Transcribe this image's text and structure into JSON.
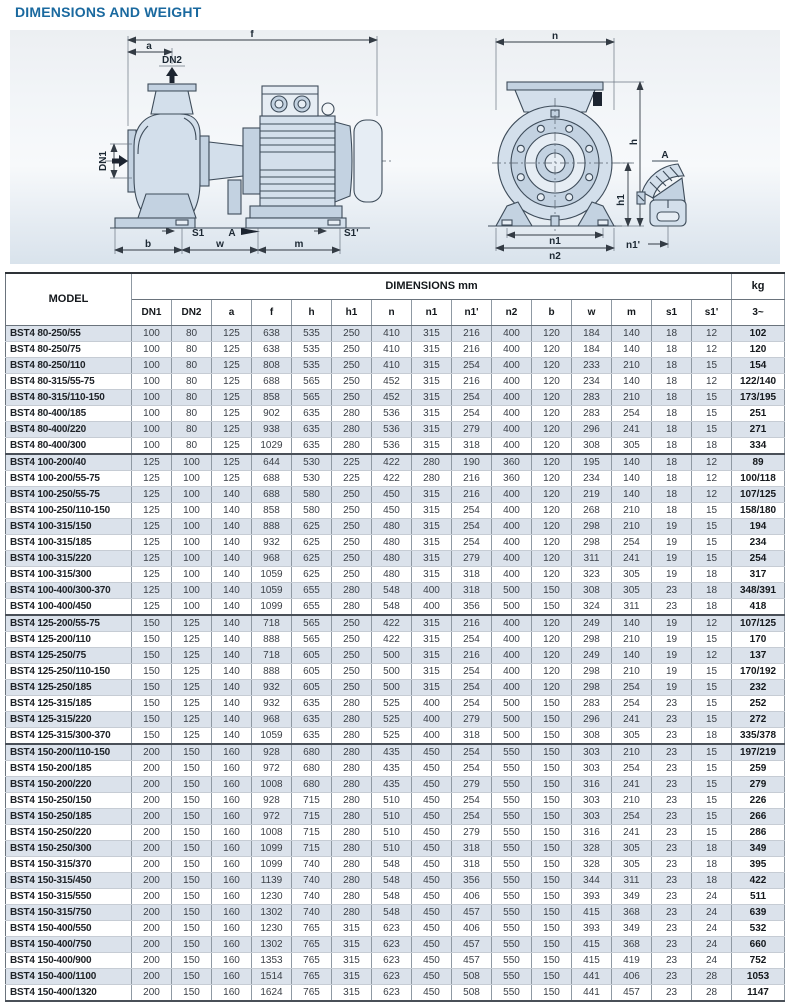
{
  "page": {
    "title": "DIMENSIONS AND WEIGHT"
  },
  "colors": {
    "title_blue": "#1a699f",
    "row_shade": "#dbe2eb",
    "drawing_line": "#3e4c5a",
    "drawing_fill": "#d3dfeb"
  },
  "drawing": {
    "labels": {
      "f": "f",
      "a": "a",
      "dn2": "DN2",
      "dn1": "DN1",
      "s1": "S1",
      "s1_prime": "S1'",
      "detail_a": "A",
      "b": "b",
      "w": "w",
      "m": "m",
      "n": "n",
      "h": "h",
      "h1": "h1",
      "n1": "n1",
      "n2": "n2",
      "n1_prime": "n1'"
    }
  },
  "table": {
    "header": {
      "model": "MODEL",
      "dimensions": "DIMENSIONS mm",
      "kg": "kg",
      "kg_sub": "3~",
      "columns": [
        "DN1",
        "DN2",
        "a",
        "f",
        "h",
        "h1",
        "n",
        "n1",
        "n1'",
        "n2",
        "b",
        "w",
        "m",
        "s1",
        "s1'"
      ]
    },
    "group_separators_after_row": [
      8,
      18,
      26
    ],
    "rows": [
      {
        "model": "BST4 80-250/55",
        "dims": [
          100,
          80,
          125,
          638,
          535,
          250,
          410,
          315,
          216,
          400,
          120,
          184,
          140,
          18,
          12
        ],
        "kg": "102"
      },
      {
        "model": "BST4 80-250/75",
        "dims": [
          100,
          80,
          125,
          638,
          535,
          250,
          410,
          315,
          216,
          400,
          120,
          184,
          140,
          18,
          12
        ],
        "kg": "120"
      },
      {
        "model": "BST4 80-250/110",
        "dims": [
          100,
          80,
          125,
          808,
          535,
          250,
          410,
          315,
          254,
          400,
          120,
          233,
          210,
          18,
          15
        ],
        "kg": "154"
      },
      {
        "model": "BST4 80-315/55-75",
        "dims": [
          100,
          80,
          125,
          688,
          565,
          250,
          452,
          315,
          216,
          400,
          120,
          234,
          140,
          18,
          12
        ],
        "kg": "122/140"
      },
      {
        "model": "BST4 80-315/110-150",
        "dims": [
          100,
          80,
          125,
          858,
          565,
          250,
          452,
          315,
          254,
          400,
          120,
          283,
          210,
          18,
          15
        ],
        "kg": "173/195"
      },
      {
        "model": "BST4 80-400/185",
        "dims": [
          100,
          80,
          125,
          902,
          635,
          280,
          536,
          315,
          254,
          400,
          120,
          283,
          254,
          18,
          15
        ],
        "kg": "251"
      },
      {
        "model": "BST4 80-400/220",
        "dims": [
          100,
          80,
          125,
          938,
          635,
          280,
          536,
          315,
          279,
          400,
          120,
          296,
          241,
          18,
          15
        ],
        "kg": "271"
      },
      {
        "model": "BST4 80-400/300",
        "dims": [
          100,
          80,
          125,
          1029,
          635,
          280,
          536,
          315,
          318,
          400,
          120,
          308,
          305,
          18,
          18
        ],
        "kg": "334"
      },
      {
        "model": "BST4 100-200/40",
        "dims": [
          125,
          100,
          125,
          644,
          530,
          225,
          422,
          280,
          190,
          360,
          120,
          195,
          140,
          18,
          12
        ],
        "kg": "89"
      },
      {
        "model": "BST4 100-200/55-75",
        "dims": [
          125,
          100,
          125,
          688,
          530,
          225,
          422,
          280,
          216,
          360,
          120,
          234,
          140,
          18,
          12
        ],
        "kg": "100/118"
      },
      {
        "model": "BST4 100-250/55-75",
        "dims": [
          125,
          100,
          140,
          688,
          580,
          250,
          450,
          315,
          216,
          400,
          120,
          219,
          140,
          18,
          12
        ],
        "kg": "107/125"
      },
      {
        "model": "BST4 100-250/110-150",
        "dims": [
          125,
          100,
          140,
          858,
          580,
          250,
          450,
          315,
          254,
          400,
          120,
          268,
          210,
          18,
          15
        ],
        "kg": "158/180"
      },
      {
        "model": "BST4 100-315/150",
        "dims": [
          125,
          100,
          140,
          888,
          625,
          250,
          480,
          315,
          254,
          400,
          120,
          298,
          210,
          19,
          15
        ],
        "kg": "194"
      },
      {
        "model": "BST4 100-315/185",
        "dims": [
          125,
          100,
          140,
          932,
          625,
          250,
          480,
          315,
          254,
          400,
          120,
          298,
          254,
          19,
          15
        ],
        "kg": "234"
      },
      {
        "model": "BST4 100-315/220",
        "dims": [
          125,
          100,
          140,
          968,
          625,
          250,
          480,
          315,
          279,
          400,
          120,
          311,
          241,
          19,
          15
        ],
        "kg": "254"
      },
      {
        "model": "BST4 100-315/300",
        "dims": [
          125,
          100,
          140,
          1059,
          625,
          250,
          480,
          315,
          318,
          400,
          120,
          323,
          305,
          19,
          18
        ],
        "kg": "317"
      },
      {
        "model": "BST4 100-400/300-370",
        "dims": [
          125,
          100,
          140,
          1059,
          655,
          280,
          548,
          400,
          318,
          500,
          150,
          308,
          305,
          23,
          18
        ],
        "kg": "348/391"
      },
      {
        "model": "BST4 100-400/450",
        "dims": [
          125,
          100,
          140,
          1099,
          655,
          280,
          548,
          400,
          356,
          500,
          150,
          324,
          311,
          23,
          18
        ],
        "kg": "418"
      },
      {
        "model": "BST4 125-200/55-75",
        "dims": [
          150,
          125,
          140,
          718,
          565,
          250,
          422,
          315,
          216,
          400,
          120,
          249,
          140,
          19,
          12
        ],
        "kg": "107/125"
      },
      {
        "model": "BST4 125-200/110",
        "dims": [
          150,
          125,
          140,
          888,
          565,
          250,
          422,
          315,
          254,
          400,
          120,
          298,
          210,
          19,
          15
        ],
        "kg": "170"
      },
      {
        "model": "BST4 125-250/75",
        "dims": [
          150,
          125,
          140,
          718,
          605,
          250,
          500,
          315,
          216,
          400,
          120,
          249,
          140,
          19,
          12
        ],
        "kg": "137"
      },
      {
        "model": "BST4 125-250/110-150",
        "dims": [
          150,
          125,
          140,
          888,
          605,
          250,
          500,
          315,
          254,
          400,
          120,
          298,
          210,
          19,
          15
        ],
        "kg": "170/192"
      },
      {
        "model": "BST4 125-250/185",
        "dims": [
          150,
          125,
          140,
          932,
          605,
          250,
          500,
          315,
          254,
          400,
          120,
          298,
          254,
          19,
          15
        ],
        "kg": "232"
      },
      {
        "model": "BST4 125-315/185",
        "dims": [
          150,
          125,
          140,
          932,
          635,
          280,
          525,
          400,
          254,
          500,
          150,
          283,
          254,
          23,
          15
        ],
        "kg": "252"
      },
      {
        "model": "BST4 125-315/220",
        "dims": [
          150,
          125,
          140,
          968,
          635,
          280,
          525,
          400,
          279,
          500,
          150,
          296,
          241,
          23,
          15
        ],
        "kg": "272"
      },
      {
        "model": "BST4 125-315/300-370",
        "dims": [
          150,
          125,
          140,
          1059,
          635,
          280,
          525,
          400,
          318,
          500,
          150,
          308,
          305,
          23,
          18
        ],
        "kg": "335/378"
      },
      {
        "model": "BST4 150-200/110-150",
        "dims": [
          200,
          150,
          160,
          928,
          680,
          280,
          435,
          450,
          254,
          550,
          150,
          303,
          210,
          23,
          15
        ],
        "kg": "197/219"
      },
      {
        "model": "BST4 150-200/185",
        "dims": [
          200,
          150,
          160,
          972,
          680,
          280,
          435,
          450,
          254,
          550,
          150,
          303,
          254,
          23,
          15
        ],
        "kg": "259"
      },
      {
        "model": "BST4 150-200/220",
        "dims": [
          200,
          150,
          160,
          1008,
          680,
          280,
          435,
          450,
          279,
          550,
          150,
          316,
          241,
          23,
          15
        ],
        "kg": "279"
      },
      {
        "model": "BST4 150-250/150",
        "dims": [
          200,
          150,
          160,
          928,
          715,
          280,
          510,
          450,
          254,
          550,
          150,
          303,
          210,
          23,
          15
        ],
        "kg": "226"
      },
      {
        "model": "BST4 150-250/185",
        "dims": [
          200,
          150,
          160,
          972,
          715,
          280,
          510,
          450,
          254,
          550,
          150,
          303,
          254,
          23,
          15
        ],
        "kg": "266"
      },
      {
        "model": "BST4 150-250/220",
        "dims": [
          200,
          150,
          160,
          1008,
          715,
          280,
          510,
          450,
          279,
          550,
          150,
          316,
          241,
          23,
          15
        ],
        "kg": "286"
      },
      {
        "model": "BST4 150-250/300",
        "dims": [
          200,
          150,
          160,
          1099,
          715,
          280,
          510,
          450,
          318,
          550,
          150,
          328,
          305,
          23,
          18
        ],
        "kg": "349"
      },
      {
        "model": "BST4 150-315/370",
        "dims": [
          200,
          150,
          160,
          1099,
          740,
          280,
          548,
          450,
          318,
          550,
          150,
          328,
          305,
          23,
          18
        ],
        "kg": "395"
      },
      {
        "model": "BST4 150-315/450",
        "dims": [
          200,
          150,
          160,
          1139,
          740,
          280,
          548,
          450,
          356,
          550,
          150,
          344,
          311,
          23,
          18
        ],
        "kg": "422"
      },
      {
        "model": "BST4 150-315/550",
        "dims": [
          200,
          150,
          160,
          1230,
          740,
          280,
          548,
          450,
          406,
          550,
          150,
          393,
          349,
          23,
          24
        ],
        "kg": "511"
      },
      {
        "model": "BST4 150-315/750",
        "dims": [
          200,
          150,
          160,
          1302,
          740,
          280,
          548,
          450,
          457,
          550,
          150,
          415,
          368,
          23,
          24
        ],
        "kg": "639"
      },
      {
        "model": "BST4 150-400/550",
        "dims": [
          200,
          150,
          160,
          1230,
          765,
          315,
          623,
          450,
          406,
          550,
          150,
          393,
          349,
          23,
          24
        ],
        "kg": "532"
      },
      {
        "model": "BST4 150-400/750",
        "dims": [
          200,
          150,
          160,
          1302,
          765,
          315,
          623,
          450,
          457,
          550,
          150,
          415,
          368,
          23,
          24
        ],
        "kg": "660"
      },
      {
        "model": "BST4 150-400/900",
        "dims": [
          200,
          150,
          160,
          1353,
          765,
          315,
          623,
          450,
          457,
          550,
          150,
          415,
          419,
          23,
          24
        ],
        "kg": "752"
      },
      {
        "model": "BST4 150-400/1100",
        "dims": [
          200,
          150,
          160,
          1514,
          765,
          315,
          623,
          450,
          508,
          550,
          150,
          441,
          406,
          23,
          28
        ],
        "kg": "1053"
      },
      {
        "model": "BST4 150-400/1320",
        "dims": [
          200,
          150,
          160,
          1624,
          765,
          315,
          623,
          450,
          508,
          550,
          150,
          441,
          457,
          23,
          28
        ],
        "kg": "1147"
      }
    ]
  }
}
